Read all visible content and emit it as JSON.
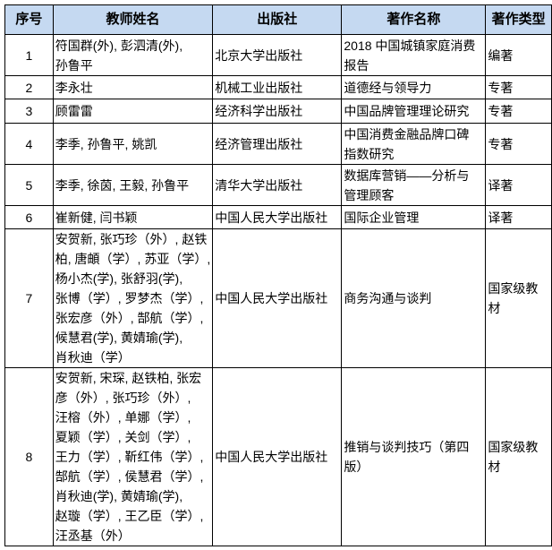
{
  "table": {
    "headers": [
      "序号",
      "教师姓名",
      "出版社",
      "著作名称",
      "著作类型"
    ],
    "header_bg": "#c5d9f1",
    "rows": [
      {
        "no": "1",
        "authors": [
          "符国群(外), 彭泗清(外),",
          "孙鲁平"
        ],
        "publisher": "北京大学出版社",
        "title": [
          "2018 中国城镇家庭消费",
          "报告"
        ],
        "type": "编著"
      },
      {
        "no": "2",
        "authors": [
          "李永壮"
        ],
        "publisher": "机械工业出版社",
        "title": [
          "道德经与领导力"
        ],
        "type": "专著"
      },
      {
        "no": "3",
        "authors": [
          "顾雷雷"
        ],
        "publisher": "经济科学出版社",
        "title": [
          "中国品牌管理理论研究"
        ],
        "type": "专著"
      },
      {
        "no": "4",
        "authors": [
          "李季, 孙鲁平, 姚凯"
        ],
        "publisher": "经济管理出版社",
        "title": [
          "中国消费金融品牌口碑",
          "指数研究"
        ],
        "type": "专著"
      },
      {
        "no": "5",
        "authors": [
          "李季, 徐茵, 王毅, 孙鲁平"
        ],
        "publisher": "清华大学出版社",
        "title": [
          "数据库营销——分析与",
          "管理顾客"
        ],
        "type": "译著"
      },
      {
        "no": "6",
        "authors": [
          "崔新健, 闫书颖"
        ],
        "publisher": "中国人民大学出版社",
        "title": [
          "国际企业管理"
        ],
        "type": "译著"
      },
      {
        "no": "7",
        "authors": [
          "安贺新, 张巧珍（外）, 赵铁",
          "柏, 唐頔（学）, 苏亚（学）,",
          "杨小杰(学), 张舒羽(学),",
          "张博（学）, 罗梦杰（学）,",
          "张宏彦（外）, 郜航（学）,",
          "候慧君(学), 黄婧瑜(学),",
          "肖秋迪（学）"
        ],
        "publisher": "中国人民大学出版社",
        "title": [
          "商务沟通与谈判"
        ],
        "type": "国家级教材"
      },
      {
        "no": "8",
        "authors": [
          "安贺新, 宋琛, 赵铁柏, 张宏",
          "彦（外）, 张巧珍（外）,",
          "汪榕（外）, 单娜（学）,",
          "夏颖（学）, 关剑（学）,",
          "王力（学）, 靳红伟（学）,",
          "郜航（学）, 侯慧君（学）,",
          "肖秋迪(学), 黄婧瑜(学),",
          "赵璇（学）, 王乙臣（学）,",
          "汪丞基（外）"
        ],
        "publisher": "中国人民大学出版社",
        "title": [
          "推销与谈判技巧（第四",
          "版）"
        ],
        "type": "国家级教材"
      }
    ]
  }
}
